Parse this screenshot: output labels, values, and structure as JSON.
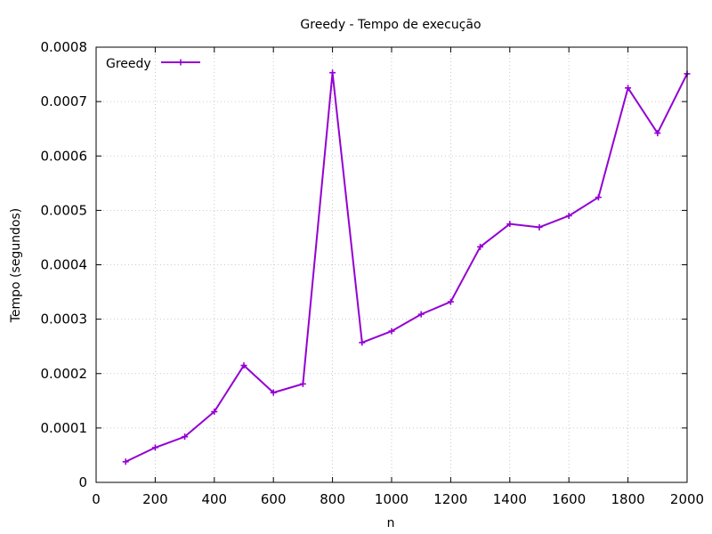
{
  "chart_data": {
    "type": "line",
    "title": "Greedy - Tempo de execução",
    "xlabel": "n",
    "ylabel": "Tempo (segundos)",
    "xlim": [
      0,
      2000
    ],
    "ylim": [
      0,
      0.0008
    ],
    "x_ticks": [
      "0",
      "200",
      "400",
      "600",
      "800",
      "1000",
      "1200",
      "1400",
      "1600",
      "1800",
      "2000"
    ],
    "y_ticks": [
      "0",
      "0.0001",
      "0.0002",
      "0.0003",
      "0.0004",
      "0.0005",
      "0.0006",
      "0.0007",
      "0.0008"
    ],
    "grid": true,
    "legend_position": "top-left",
    "series": [
      {
        "name": "Greedy",
        "color": "#9400d3",
        "marker": "plus",
        "x": [
          100,
          200,
          300,
          400,
          500,
          600,
          700,
          800,
          900,
          1000,
          1100,
          1200,
          1300,
          1400,
          1500,
          1600,
          1700,
          1800,
          1900,
          2000
        ],
        "y": [
          3.8e-05,
          6.4e-05,
          8.4e-05,
          0.00013,
          0.000215,
          0.000165,
          0.000181,
          0.000753,
          0.000257,
          0.000278,
          0.000309,
          0.000332,
          0.000433,
          0.000475,
          0.000469,
          0.00049,
          0.000524,
          0.000725,
          0.000642,
          0.000751
        ]
      }
    ]
  }
}
